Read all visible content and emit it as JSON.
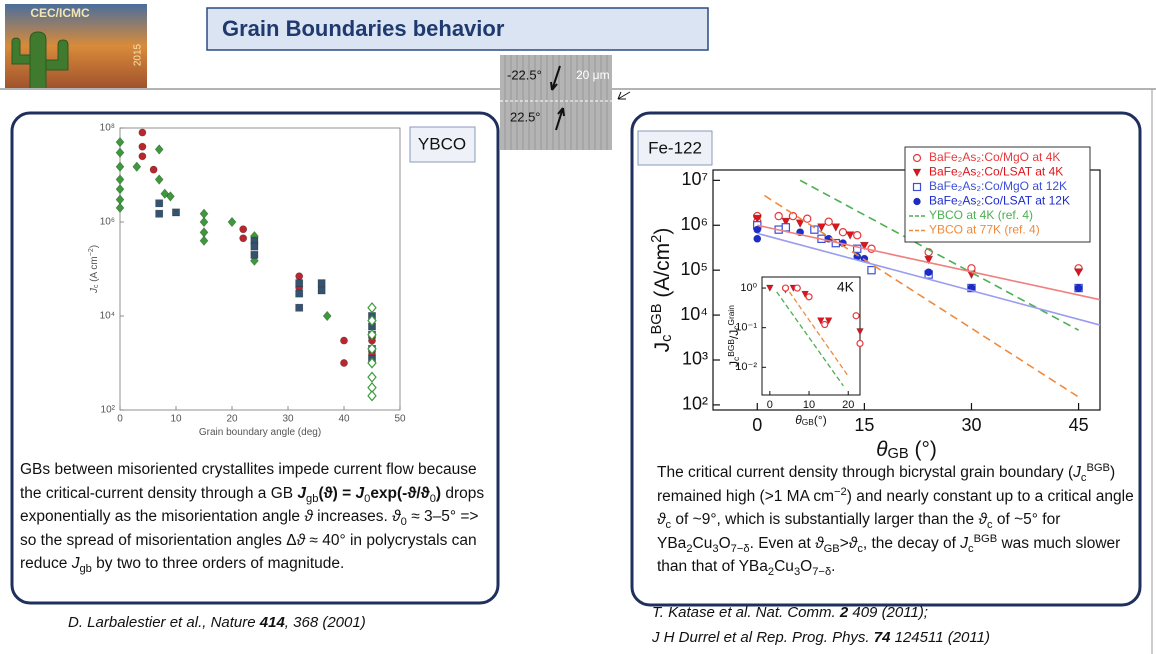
{
  "logo": {
    "title": "CEC/ICMC",
    "year": "2015"
  },
  "header": {
    "title": "Grain Boundaries behavior"
  },
  "micrograph": {
    "angle_top": "-22.5°",
    "scale": "20 μm",
    "angle_bottom": "22.5°"
  },
  "left_panel": {
    "tag": "YBCO",
    "text": [
      "GBs between misoriented crystallites impede current flow because the critical-current density through a GB ",
      {
        "bi": "J"
      },
      {
        "sub": "gb"
      },
      {
        "b": "(ϑ) = "
      },
      {
        "bi": "J"
      },
      {
        "sub": "0"
      },
      {
        "b": "exp(-ϑ/ϑ"
      },
      {
        "sub": "0"
      },
      {
        "b": ")"
      },
      " drops exponentially as the misorientation angle ",
      {
        "i": "ϑ"
      },
      " increases. ",
      {
        "i": "ϑ"
      },
      {
        "sub": "0"
      },
      " ≈ 3–5° => so the spread of misorientation angles Δ",
      {
        "i": "ϑ"
      },
      " ≈ 40° in polycrystals can reduce ",
      {
        "i": "J"
      },
      {
        "sub": "gb"
      },
      " by two to three orders of magnitude."
    ],
    "citation": [
      {
        "i": "D. Larbalestier et al., Nature "
      },
      {
        "bi": "414"
      },
      {
        "i": ", 368 (2001)"
      }
    ]
  },
  "right_panel": {
    "tag": "Fe-122",
    "text": [
      " The critical current density through bicrystal grain boundary (",
      {
        "i": "J"
      },
      {
        "sub": "c"
      },
      {
        "sup": "BGB"
      },
      ") remained high (>1 MA cm",
      {
        "sup": "−2"
      },
      ") and nearly constant up to a critical angle ",
      {
        "i": "ϑ"
      },
      {
        "sub": "c"
      },
      " of ~9°, which is substantially larger than the ",
      {
        "i": "ϑ"
      },
      {
        "sub": "c"
      },
      " of ~5° for YBa",
      {
        "sub": "2"
      },
      "Cu",
      {
        "sub": "3"
      },
      "O",
      {
        "sub": "7−δ"
      },
      ". Even at ",
      {
        "i": "ϑ"
      },
      {
        "sub": "GB"
      },
      ">",
      {
        "i": "ϑ"
      },
      {
        "sub": "c"
      },
      ", the decay of ",
      {
        "i": "J"
      },
      {
        "sub": "c"
      },
      {
        "sup": "BGB"
      },
      " was much slower than that of YBa",
      {
        "sub": "2"
      },
      "Cu",
      {
        "sub": "3"
      },
      "O",
      {
        "sub": "7−δ"
      },
      "."
    ],
    "citations": [
      [
        {
          "i": "T. Katase et al. Nat. Comm. "
        },
        {
          "bi": "2"
        },
        {
          "i": " 409 (2011);"
        }
      ],
      [
        {
          "i": "J H Durrel et al Rep. Prog. Phys. "
        },
        {
          "bi": "74"
        },
        {
          "i": " 124511 (2011)"
        }
      ]
    ]
  },
  "chart_data": [
    {
      "type": "scatter",
      "xlabel": [
        "Grain boundary angle (deg)"
      ],
      "ylabel": [
        {
          "i": "J"
        },
        {
          "sub": "c"
        },
        " (A cm",
        {
          "sup": "−2"
        },
        ")"
      ],
      "xlim": [
        0,
        50
      ],
      "xticks": [
        0,
        10,
        20,
        30,
        40,
        50
      ],
      "ylog": true,
      "ylim": [
        100,
        100000000.0
      ],
      "yticks": [
        {
          "value": 100,
          "label": "10²"
        },
        {
          "value": 10000,
          "label": "10⁴"
        },
        {
          "value": 1000000,
          "label": "10⁶"
        },
        {
          "value": 100000000.0,
          "label": "10⁸"
        }
      ],
      "series": [
        {
          "color": "#3c9a3c",
          "marker": "diamond",
          "filled": true,
          "x": [
            0,
            0,
            0,
            0,
            0,
            0,
            0,
            3,
            7,
            7,
            8,
            9,
            15,
            15,
            15,
            15,
            20,
            24,
            24,
            37
          ],
          "values": [
            50000000.0,
            30000000.0,
            15000000.0,
            8000000.0,
            5000000.0,
            3000000.0,
            2000000.0,
            15000000.0,
            35000000.0,
            8000000.0,
            4000000.0,
            3500000.0,
            1500000.0,
            1000000.0,
            600000.0,
            400000.0,
            1000000.0,
            500000.0,
            150000.0,
            10000.0
          ]
        },
        {
          "color": "#b8272d",
          "marker": "circle",
          "filled": true,
          "x": [
            4,
            4,
            4,
            6,
            22,
            22,
            32,
            32,
            40,
            40,
            45,
            45
          ],
          "values": [
            80000000.0,
            40000000.0,
            25000000.0,
            13000000.0,
            700000.0,
            450000.0,
            70000.0,
            40000.0,
            3000.0,
            1000.0,
            3000.0,
            1500.0
          ]
        },
        {
          "color": "#35536e",
          "marker": "square",
          "filled": true,
          "x": [
            7,
            7,
            10,
            24,
            24,
            24,
            32,
            32,
            32,
            36,
            36,
            45,
            45,
            45,
            45,
            45
          ],
          "values": [
            2500000.0,
            1500000.0,
            1600000.0,
            400000.0,
            300000.0,
            200000.0,
            50000.0,
            30000.0,
            15000.0,
            50000.0,
            35000.0,
            10000.0,
            6000.0,
            4000.0,
            2000.0,
            1200.0
          ]
        },
        {
          "color": "#3c9a3c",
          "marker": "diamond",
          "filled": false,
          "x": [
            45,
            45,
            45,
            45,
            45,
            45,
            45,
            45
          ],
          "values": [
            15000.0,
            8000.0,
            4000.0,
            2000.0,
            1000.0,
            500,
            300,
            200
          ]
        }
      ]
    },
    {
      "type": "scatter",
      "xlabel": [
        {
          "i": "θ"
        },
        {
          "sub": "GB"
        },
        " (°)"
      ],
      "ylabel": [
        "J",
        {
          "sub": "c"
        },
        {
          "sup": "BGB"
        },
        " (A/cm",
        {
          "sup": "2"
        },
        ")"
      ],
      "xlim": [
        -6.2,
        48
      ],
      "xticks": [
        0,
        15,
        30,
        45
      ],
      "ylog": true,
      "ylim": [
        77,
        17000000.0
      ],
      "yticks": [
        {
          "value": 100,
          "label": "10²"
        },
        {
          "value": 1000,
          "label": "10³"
        },
        {
          "value": 10000,
          "label": "10⁴"
        },
        {
          "value": 100000,
          "label": "10⁵"
        },
        {
          "value": 1000000,
          "label": "10⁶"
        },
        {
          "value": 10000000.0,
          "label": "10⁷"
        }
      ],
      "legend": "upper right",
      "series": [
        {
          "name": "BaFe₂As₂:Co/MgO at 4K",
          "color": "#e8393c",
          "marker": "circle",
          "filled": false,
          "x": [
            0,
            0,
            3,
            5,
            7,
            10,
            12,
            14,
            16,
            24,
            30,
            45
          ],
          "values": [
            1600000.0,
            1200000.0,
            1600000.0,
            1600000.0,
            1400000.0,
            1200000.0,
            700000.0,
            600000.0,
            300000.0,
            250000.0,
            110000.0,
            110000.0
          ]
        },
        {
          "name": "BaFe₂As₂:Co/LSAT at 4K",
          "color": "#e0141c",
          "marker": "triangle-down",
          "filled": true,
          "x": [
            0,
            4,
            6,
            9,
            11,
            13,
            15,
            24,
            30,
            45
          ],
          "values": [
            1400000.0,
            1200000.0,
            1100000.0,
            900000.0,
            900000.0,
            600000.0,
            350000.0,
            170000.0,
            80000.0,
            90000.0
          ]
        },
        {
          "name": "BaFe₂As₂:Co/MgO at 12K",
          "color": "#3b4fd8",
          "marker": "square",
          "filled": false,
          "x": [
            0,
            3,
            4,
            8,
            9,
            11,
            14,
            16,
            24,
            30,
            45
          ],
          "values": [
            1000000.0,
            800000.0,
            900000.0,
            800000.0,
            500000.0,
            400000.0,
            300000.0,
            100000.0,
            80000.0,
            40000.0,
            40000.0
          ]
        },
        {
          "name": "BaFe₂As₂:Co/LSAT at 12K",
          "color": "#1a2bd0",
          "marker": "circle",
          "filled": true,
          "x": [
            0,
            0,
            6,
            10,
            12,
            14,
            15,
            24,
            30,
            45
          ],
          "values": [
            800000.0,
            500000.0,
            700000.0,
            500000.0,
            400000.0,
            200000.0,
            180000.0,
            90000.0,
            40000.0,
            40000.0
          ]
        },
        {
          "name": "YBCO at 4K (ref. 4)",
          "color": "#4caf50",
          "style": "dashed",
          "x": [
            6,
            45
          ],
          "values": [
            10000000.0,
            4600
          ]
        },
        {
          "name": "YBCO at 77K (ref. 4)",
          "color": "#f08a3c",
          "style": "dashed",
          "x": [
            1,
            45
          ],
          "values": [
            4600000.0,
            150
          ]
        },
        {
          "color": "#f07f7f",
          "style": "solid",
          "x": [
            0,
            48
          ],
          "values": [
            1000000.0,
            22000
          ]
        },
        {
          "color": "#9a9cf0",
          "style": "solid",
          "x": [
            0,
            48
          ],
          "values": [
            660000.0,
            6000
          ]
        }
      ]
    },
    {
      "type": "scatter",
      "label": "4K",
      "xlabel": [
        {
          "i": "θ"
        },
        {
          "sub": "GB"
        },
        "(°)"
      ],
      "ylabel": [
        "J",
        {
          "sub": "c"
        },
        {
          "sup": "BGB"
        },
        "/J",
        {
          "sub": "c"
        },
        {
          "sup": "Grain"
        }
      ],
      "xlim": [
        -2,
        23
      ],
      "xticks": [
        0,
        10,
        20
      ],
      "ylog": true,
      "ylim": [
        0.002,
        1.9
      ],
      "yticks": [
        {
          "value": 0.01,
          "label": "10⁻²"
        },
        {
          "value": 0.1,
          "label": "10⁻¹"
        },
        {
          "value": 1,
          "label": "10⁰"
        }
      ],
      "series": [
        {
          "color": "#e0141c",
          "marker": "triangle-down",
          "filled": true,
          "x": [
            0,
            4,
            6,
            9,
            13,
            15,
            23
          ],
          "values": [
            1,
            0.9,
            1,
            0.7,
            0.15,
            0.15,
            0.08
          ]
        },
        {
          "color": "#e8393c",
          "marker": "circle",
          "filled": false,
          "x": [
            4,
            7,
            10,
            14,
            22,
            23
          ],
          "values": [
            1,
            1,
            0.6,
            0.12,
            0.2,
            0.04
          ]
        },
        {
          "color": "#4caf50",
          "style": "dashed",
          "x": [
            1.75,
            18.75
          ],
          "values": [
            0.8,
            0.0034
          ]
        },
        {
          "color": "#f08a3c",
          "style": "dashed",
          "x": [
            5,
            20
          ],
          "values": [
            0.8,
            0.006
          ]
        }
      ]
    }
  ]
}
